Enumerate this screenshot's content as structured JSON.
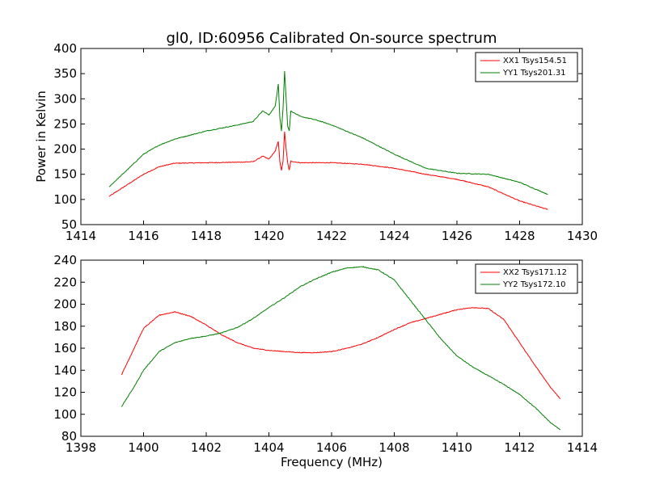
{
  "figure": {
    "title": "gl0, ID:60956 Calibrated On-source spectrum",
    "xlabel": "Frequency (MHz)"
  },
  "colors": {
    "red": "#ff0000",
    "green": "#008000"
  },
  "chart_data": [
    {
      "type": "line",
      "title": "gl0, ID:60956 Calibrated On-source spectrum",
      "xlabel": "",
      "ylabel": "Power in Kelvin",
      "xlim": [
        1414,
        1430
      ],
      "ylim": [
        50,
        400
      ],
      "xticks": [
        1414,
        1416,
        1418,
        1420,
        1422,
        1424,
        1426,
        1428,
        1430
      ],
      "yticks": [
        50,
        100,
        150,
        200,
        250,
        300,
        350,
        400
      ],
      "grid": false,
      "legend_position": "top-right",
      "series": [
        {
          "name": "XX1 Tsys154.51",
          "color": "#ff0000",
          "x": [
            1414.9,
            1415.5,
            1416.0,
            1416.5,
            1417.0,
            1418.0,
            1419.0,
            1419.5,
            1419.8,
            1420.0,
            1420.2,
            1420.3,
            1420.35,
            1420.4,
            1420.45,
            1420.5,
            1420.55,
            1420.6,
            1420.65,
            1420.7,
            1420.8,
            1421.0,
            1421.5,
            1422.0,
            1423.0,
            1424.0,
            1425.0,
            1426.0,
            1427.0,
            1428.0,
            1428.9
          ],
          "y": [
            106,
            130,
            150,
            165,
            172,
            173,
            174,
            175,
            186,
            180,
            196,
            215,
            175,
            158,
            175,
            235,
            200,
            172,
            158,
            176,
            175,
            173,
            173,
            173,
            170,
            162,
            150,
            140,
            125,
            97,
            80
          ]
        },
        {
          "name": "YY1 Tsys201.31",
          "color": "#008000",
          "x": [
            1414.9,
            1415.5,
            1416.0,
            1416.5,
            1417.0,
            1418.0,
            1419.0,
            1419.5,
            1419.8,
            1420.0,
            1420.2,
            1420.3,
            1420.35,
            1420.4,
            1420.45,
            1420.5,
            1420.55,
            1420.6,
            1420.65,
            1420.7,
            1420.8,
            1421.0,
            1421.5,
            1422.0,
            1423.0,
            1424.0,
            1425.0,
            1426.0,
            1427.0,
            1428.0,
            1428.9
          ],
          "y": [
            125,
            160,
            190,
            208,
            220,
            236,
            248,
            255,
            276,
            268,
            285,
            330,
            262,
            236,
            280,
            355,
            300,
            245,
            237,
            276,
            272,
            265,
            258,
            248,
            222,
            190,
            162,
            152,
            150,
            134,
            110
          ]
        }
      ]
    },
    {
      "type": "line",
      "title": "",
      "xlabel": "Frequency (MHz)",
      "ylabel": "",
      "xlim": [
        1398,
        1414
      ],
      "ylim": [
        80,
        240
      ],
      "xticks": [
        1398,
        1400,
        1402,
        1404,
        1406,
        1408,
        1410,
        1412,
        1414
      ],
      "yticks": [
        80,
        100,
        120,
        140,
        160,
        180,
        200,
        220,
        240
      ],
      "grid": false,
      "legend_position": "top-right",
      "series": [
        {
          "name": "XX2 Tsys171.12",
          "color": "#ff0000",
          "x": [
            1399.3,
            1399.7,
            1400.0,
            1400.5,
            1401.0,
            1401.5,
            1402.0,
            1402.5,
            1403.0,
            1403.5,
            1404.0,
            1404.5,
            1405.0,
            1405.5,
            1406.0,
            1406.5,
            1407.0,
            1407.5,
            1408.0,
            1408.5,
            1409.0,
            1409.5,
            1410.0,
            1410.5,
            1411.0,
            1411.5,
            1412.0,
            1412.5,
            1413.0,
            1413.3
          ],
          "y": [
            136,
            160,
            178,
            190,
            193,
            189,
            181,
            172,
            165,
            160,
            158,
            157,
            156,
            156,
            157,
            160,
            164,
            170,
            177,
            183,
            187,
            191,
            195,
            197,
            196,
            186,
            165,
            144,
            124,
            114
          ]
        },
        {
          "name": "YY2 Tsys172.10",
          "color": "#008000",
          "x": [
            1399.3,
            1399.7,
            1400.0,
            1400.5,
            1401.0,
            1401.5,
            1402.0,
            1402.5,
            1403.0,
            1403.5,
            1404.0,
            1404.5,
            1405.0,
            1405.5,
            1406.0,
            1406.5,
            1407.0,
            1407.5,
            1408.0,
            1408.5,
            1409.0,
            1409.5,
            1410.0,
            1410.5,
            1411.0,
            1411.5,
            1412.0,
            1412.5,
            1413.0,
            1413.3
          ],
          "y": [
            107,
            125,
            140,
            157,
            165,
            169,
            171,
            174,
            179,
            187,
            197,
            206,
            216,
            223,
            229,
            233,
            234,
            231,
            222,
            204,
            186,
            168,
            153,
            143,
            135,
            127,
            118,
            106,
            92,
            86
          ]
        }
      ]
    }
  ]
}
